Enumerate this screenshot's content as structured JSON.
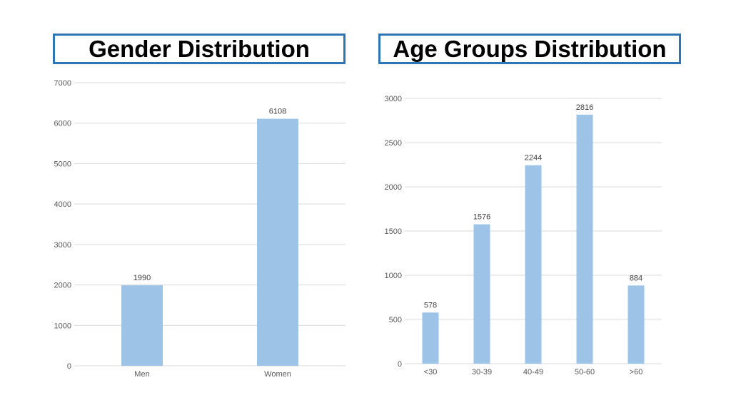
{
  "colors": {
    "bar": "#9dc3e6",
    "title_border": "#2e75b6",
    "grid": "#d9d9d9"
  },
  "chart_data": [
    {
      "type": "bar",
      "title": "Gender Distribution",
      "categories": [
        "Men",
        "Women"
      ],
      "values": [
        1990,
        6108
      ],
      "ylim": [
        0,
        7000
      ],
      "yticks": [
        0,
        1000,
        2000,
        3000,
        4000,
        5000,
        6000,
        7000
      ],
      "data_labels": true,
      "grid": true,
      "legend": "none"
    },
    {
      "type": "bar",
      "title": "Age Groups Distribution",
      "categories": [
        "<30",
        "30-39",
        "40-49",
        "50-60",
        ">60"
      ],
      "values": [
        578,
        1576,
        2244,
        2816,
        884
      ],
      "ylim": [
        0,
        3000
      ],
      "yticks": [
        0,
        500,
        1000,
        1500,
        2000,
        2500,
        3000
      ],
      "data_labels": true,
      "grid": true,
      "legend": "none"
    }
  ]
}
